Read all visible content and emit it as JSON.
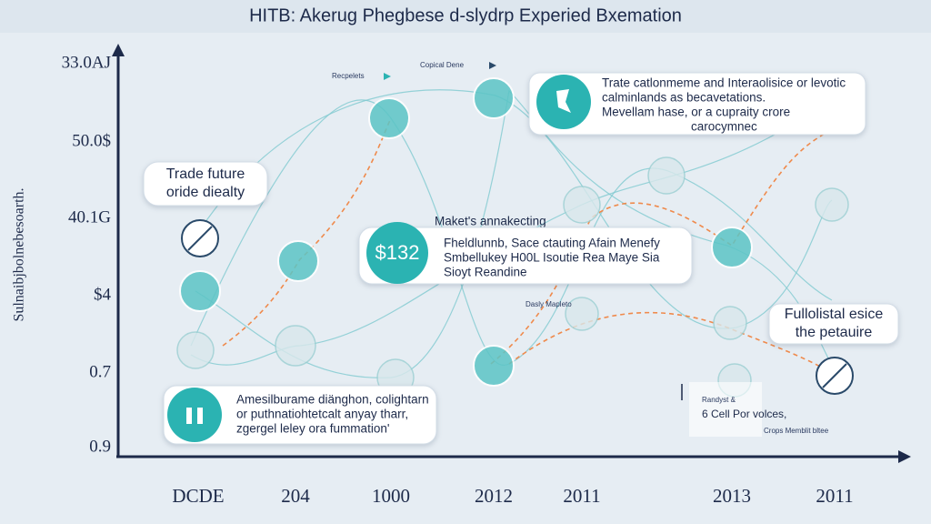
{
  "header": {
    "title": "HITB: Akerug Phegbese d-slydrp Experied Bxemation"
  },
  "axis": {
    "y_title": "Sulnaibjbolnebesoarth.",
    "y_labels": [
      "33.0AJ",
      "50.0$",
      "40.1G",
      "$4",
      "0.7",
      "0.9"
    ],
    "x_labels": [
      "DCDE",
      "204",
      "1000",
      "2012",
      "2011",
      "2013",
      "2011"
    ]
  },
  "callouts": [
    {
      "lines": [
        "Trade future",
        "oride diealty"
      ]
    },
    {
      "lines": [
        "Trate catlonmeme and Interaolisice or levotic",
        "calminlands as becavetations.",
        "Mevellam hase, or a cupraity crore",
        "carocymnec"
      ]
    },
    {
      "title": "Maket's annakecting",
      "badge": "$132",
      "lines": [
        "Fheldlunnb, Sace ctauting Afain Menefy",
        "Smbellukey H00L Isoutie Rea Maye Sia",
        "Sioyt Reandine"
      ]
    },
    {
      "lines": [
        "Fullolistal esice",
        "the petauire"
      ]
    },
    {
      "lines": [
        "Amesilburame diänghon, colightarn",
        "or puthnatiohtetcalt anyay tharr,",
        "zgergel leley ora fummation'"
      ]
    }
  ],
  "labels": [
    "Recpelets",
    "Copical Dene",
    "Dasly Mapleto",
    "Randyst &",
    "6 Cell Por volces,",
    "Crops Memblit bltee"
  ]
}
